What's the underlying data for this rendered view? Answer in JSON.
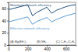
{
  "chart_data": {
    "type": "line",
    "x": [
      0,
      50,
      100,
      150,
      200,
      250,
      300,
      350,
      400,
      450,
      500,
      550,
      600,
      650,
      700
    ],
    "series": [
      {
        "name": "Maximum network efficiency",
        "color": "#1f4e79",
        "values": [
          58,
          60,
          62,
          64,
          66,
          48,
          54,
          58,
          62,
          52,
          57,
          60,
          63,
          65,
          66
        ]
      },
      {
        "name": "Effective network efficiency",
        "color": "#5b9bd5",
        "values": [
          38,
          40,
          42,
          44,
          46,
          34,
          39,
          42,
          45,
          38,
          42,
          45,
          48,
          50,
          52
        ]
      }
    ],
    "annotations": [
      "Maximum network efficiency",
      "Effective network efficiency",
      "(A) Mg(BH₄)₂",
      "(B) NH₃",
      "(C) C₆H₁₂/C₆H₆"
    ],
    "xlim": [
      0,
      700
    ],
    "xticks": [
      0,
      200,
      400,
      600
    ],
    "ylim": [
      0,
      70
    ],
    "yticks": [
      0,
      20,
      40,
      60
    ]
  }
}
